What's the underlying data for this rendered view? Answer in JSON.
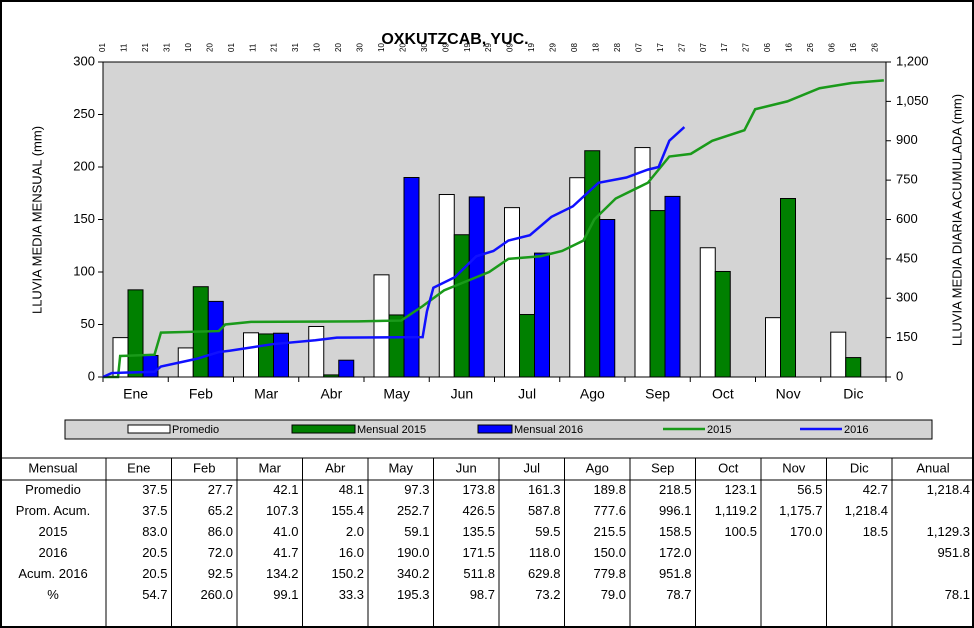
{
  "chart_data": {
    "type": "bar-line",
    "title": "OXKUTZCAB, YUC.",
    "y_label": "LLUVIA MEDIA MENSUAL (mm)",
    "y2_label": "LLUVIA MEDIA DIARIA ACUMULADA (mm)",
    "categories": [
      "Ene",
      "Feb",
      "Mar",
      "Abr",
      "May",
      "Jun",
      "Jul",
      "Ago",
      "Sep",
      "Oct",
      "Nov",
      "Dic"
    ],
    "top_labels": [
      "01",
      "11",
      "21",
      "31",
      "10",
      "20",
      "01",
      "11",
      "21",
      "31",
      "10",
      "20",
      "30",
      "10",
      "20",
      "30",
      "09",
      "19",
      "29",
      "09",
      "19",
      "29",
      "08",
      "18",
      "28",
      "07",
      "17",
      "27",
      "07",
      "17",
      "27",
      "06",
      "16",
      "26",
      "06",
      "16",
      "26"
    ],
    "ylim": [
      0,
      300
    ],
    "yticks": [
      0,
      50,
      100,
      150,
      200,
      250,
      300
    ],
    "y2lim": [
      0,
      1200
    ],
    "y2ticks": [
      0,
      150,
      300,
      450,
      600,
      750,
      900,
      {
        "value": 1050,
        "label": "1,050"
      },
      {
        "value": 1200,
        "label": "1,200"
      }
    ],
    "xlim": [
      1,
      366
    ],
    "series": [
      {
        "name": "Promedio",
        "color": "#ffffff",
        "kind": "bar",
        "values": [
          37.5,
          27.7,
          42.1,
          48.1,
          97.3,
          173.8,
          161.3,
          189.8,
          218.5,
          123.1,
          56.5,
          42.7
        ]
      },
      {
        "name": "Mensual 2015",
        "color": "#008000",
        "kind": "bar",
        "values": [
          83.0,
          86.0,
          41.0,
          2.0,
          59.1,
          135.5,
          59.5,
          215.5,
          158.5,
          100.5,
          170.0,
          18.5
        ]
      },
      {
        "name": "Mensual 2016",
        "color": "#0000ff",
        "kind": "bar",
        "values": [
          20.5,
          72.0,
          41.7,
          16.0,
          190.0,
          171.5,
          118.0,
          150.0,
          172.0,
          null,
          null,
          null
        ]
      },
      {
        "name": "2015",
        "color": "#1a9a1a",
        "kind": "line",
        "axis": "y2",
        "x": [
          1,
          8,
          9,
          25,
          28,
          55,
          58,
          70,
          120,
          140,
          150,
          160,
          175,
          181,
          190,
          205,
          215,
          225,
          230,
          240,
          255,
          265,
          275,
          285,
          300,
          305,
          320,
          335,
          350,
          365
        ],
        "values": [
          0,
          0,
          80,
          85,
          169,
          175,
          200,
          210,
          212,
          215,
          270,
          330,
          380,
          400,
          450,
          460,
          480,
          520,
          600,
          680,
          740,
          840,
          850,
          900,
          940,
          1020,
          1050,
          1100,
          1120,
          1130
        ]
      },
      {
        "name": "2016",
        "color": "#1010ff",
        "kind": "line",
        "axis": "y2",
        "x": [
          1,
          5,
          25,
          28,
          45,
          55,
          60,
          80,
          100,
          110,
          150,
          152,
          155,
          165,
          175,
          183,
          190,
          200,
          210,
          220,
          232,
          245,
          255,
          260,
          265,
          272
        ],
        "values": [
          0,
          15,
          20,
          40,
          70,
          95,
          100,
          125,
          140,
          150,
          152,
          250,
          340,
          380,
          460,
          480,
          520,
          540,
          610,
          650,
          740,
          760,
          790,
          800,
          900,
          952
        ]
      }
    ]
  },
  "table": {
    "header": [
      "Mensual",
      "Ene",
      "Feb",
      "Mar",
      "Abr",
      "May",
      "Jun",
      "Jul",
      "Ago",
      "Sep",
      "Oct",
      "Nov",
      "Dic",
      "Anual"
    ],
    "rows": [
      [
        "Promedio",
        "37.5",
        "27.7",
        "42.1",
        "48.1",
        "97.3",
        "173.8",
        "161.3",
        "189.8",
        "218.5",
        "123.1",
        "56.5",
        "42.7",
        "1,218.4"
      ],
      [
        "Prom. Acum.",
        "37.5",
        "65.2",
        "107.3",
        "155.4",
        "252.7",
        "426.5",
        "587.8",
        "777.6",
        "996.1",
        "1,119.2",
        "1,175.7",
        "1,218.4",
        null
      ],
      [
        "2015",
        "83.0",
        "86.0",
        "41.0",
        "2.0",
        "59.1",
        "135.5",
        "59.5",
        "215.5",
        "158.5",
        "100.5",
        "170.0",
        "18.5",
        "1,129.3"
      ],
      [
        "2016",
        "20.5",
        "72.0",
        "41.7",
        "16.0",
        "190.0",
        "171.5",
        "118.0",
        "150.0",
        "172.0",
        null,
        null,
        null,
        "951.8"
      ],
      [
        "Acum. 2016",
        "20.5",
        "92.5",
        "134.2",
        "150.2",
        "340.2",
        "511.8",
        "629.8",
        "779.8",
        "951.8",
        null,
        null,
        null,
        null
      ],
      [
        "%",
        "54.7",
        "260.0",
        "99.1",
        "33.3",
        "195.3",
        "98.7",
        "73.2",
        "79.0",
        "78.7",
        null,
        null,
        null,
        "78.1"
      ]
    ]
  }
}
